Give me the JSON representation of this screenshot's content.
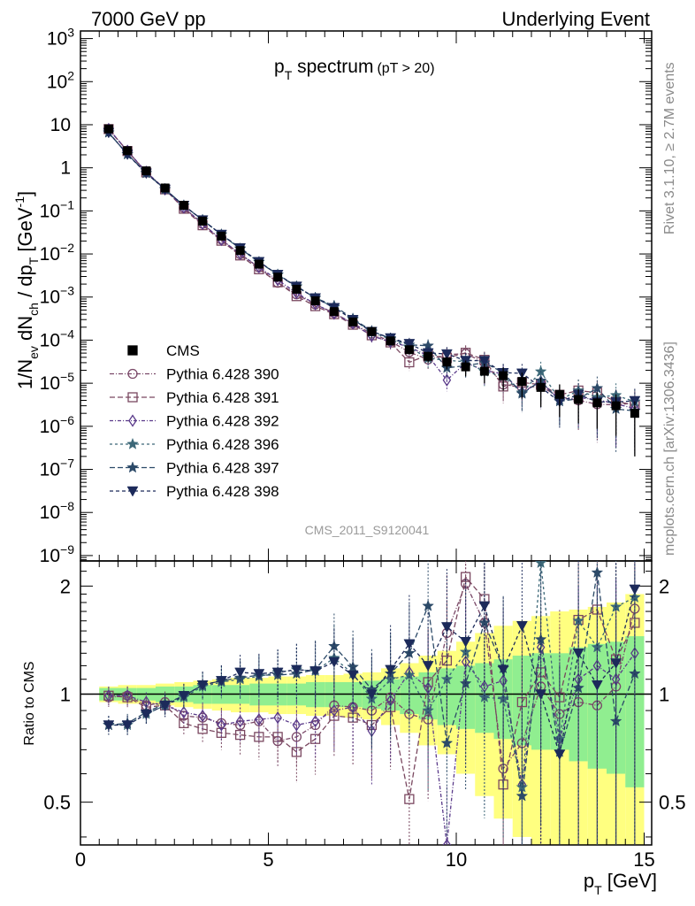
{
  "header": {
    "left": "7000 GeV pp",
    "right": "Underlying Event"
  },
  "side": {
    "top": "Rivet 3.1.10, ≥ 2.7M events",
    "bottom": "mcplots.cern.ch [arXiv:1306.3436]"
  },
  "chart_data": {
    "type": "scatter",
    "title": "p_T spectrum (pT > 20)",
    "title_main": "p",
    "title_sub": "T",
    "title_rest": " spectrum",
    "title_cut": "(pT > 20)",
    "analysis": "CMS_2011_S9120041",
    "xlabel": "p_T [GeV]",
    "xlabel_main": "p",
    "xlabel_sub": "T",
    "xlabel_rest": " [GeV]",
    "ylabel": "1/N_ev dN_ch / dp_T [GeV^-1]",
    "ratio_ylabel": "Ratio to CMS",
    "xlim": [
      0,
      15.2
    ],
    "ylim": [
      7.5e-10,
      1500.0
    ],
    "yscale": "log",
    "ratio_ylim": [
      0.38,
      2.35
    ],
    "ratio_yscale": "log",
    "x_ticks": [
      "0",
      "5",
      "10",
      "15"
    ],
    "ratio_ticks": [
      "0.5",
      "1",
      "2"
    ],
    "y_ticks": [
      {
        "base": "10",
        "exp": "3"
      },
      {
        "base": "10",
        "exp": "2"
      },
      {
        "base": "10",
        "exp": ""
      },
      {
        "base": "1",
        "exp": ""
      },
      {
        "base": "10",
        "exp": "−1"
      },
      {
        "base": "10",
        "exp": "−2"
      },
      {
        "base": "10",
        "exp": "−3"
      },
      {
        "base": "10",
        "exp": "−4"
      },
      {
        "base": "10",
        "exp": "−5"
      },
      {
        "base": "10",
        "exp": "−6"
      },
      {
        "base": "10",
        "exp": "−7"
      },
      {
        "base": "10",
        "exp": "−8"
      },
      {
        "base": "10",
        "exp": "−9"
      }
    ],
    "x": [
      0.75,
      1.25,
      1.75,
      2.25,
      2.75,
      3.25,
      3.75,
      4.25,
      4.75,
      5.25,
      5.75,
      6.25,
      6.75,
      7.25,
      7.75,
      8.25,
      8.75,
      9.25,
      9.75,
      10.25,
      10.75,
      11.25,
      11.75,
      12.25,
      12.75,
      13.25,
      13.75,
      14.25,
      14.75
    ],
    "data": {
      "name": "CMS",
      "values": [
        8.0,
        2.5,
        0.85,
        0.34,
        0.135,
        0.058,
        0.026,
        0.012,
        0.0058,
        0.0029,
        0.00152,
        0.00082,
        0.00046,
        0.000265,
        0.000158,
        9.6e-05,
        6e-05,
        4.2e-05,
        3.1e-05,
        2.4e-05,
        1.9e-05,
        1.5e-05,
        1.1e-05,
        8e-06,
        5.5e-06,
        4.2e-06,
        3.5e-06,
        3e-06,
        2e-06
      ],
      "band_inner": [
        0.04,
        0.04,
        0.04,
        0.05,
        0.05,
        0.06,
        0.06,
        0.06,
        0.07,
        0.07,
        0.07,
        0.08,
        0.08,
        0.08,
        0.09,
        0.1,
        0.12,
        0.15,
        0.18,
        0.2,
        0.22,
        0.25,
        0.28,
        0.3,
        0.3,
        0.35,
        0.38,
        0.4,
        0.45
      ],
      "band_outer": [
        0.05,
        0.06,
        0.06,
        0.07,
        0.08,
        0.09,
        0.1,
        0.11,
        0.11,
        0.12,
        0.12,
        0.13,
        0.13,
        0.14,
        0.15,
        0.18,
        0.22,
        0.28,
        0.32,
        0.4,
        0.48,
        0.55,
        0.6,
        0.65,
        0.7,
        0.72,
        0.75,
        0.8,
        0.9
      ]
    },
    "series": [
      {
        "name": "Pythia 6.428 390",
        "color": "#7a4868",
        "marker": "circle",
        "dash": "5,2,1,2",
        "ratio": [
          0.98,
          0.99,
          0.93,
          0.95,
          0.87,
          0.86,
          0.83,
          0.82,
          0.84,
          0.74,
          0.76,
          0.82,
          0.93,
          0.92,
          0.9,
          0.98,
          0.88,
          0.85,
          1.48,
          2.03,
          1.58,
          0.62,
          0.73,
          1.05,
          0.88,
          0.95,
          0.93,
          1.05,
          1.73
        ]
      },
      {
        "name": "Pythia 6.428 391",
        "color": "#7a4860",
        "marker": "square",
        "dash": "6,3",
        "ratio": [
          0.99,
          0.98,
          0.92,
          0.93,
          0.83,
          0.8,
          0.78,
          0.77,
          0.76,
          0.76,
          0.69,
          0.75,
          0.87,
          0.86,
          0.82,
          0.92,
          0.51,
          1.08,
          1.24,
          2.12,
          1.84,
          0.56,
          0.95,
          1.15,
          0.98,
          1.61,
          1.72,
          1.25,
          1.58
        ]
      },
      {
        "name": "Pythia 6.428 392",
        "color": "#5a3a8a",
        "marker": "diamond",
        "dash": "4,2,1,2",
        "ratio": [
          0.99,
          0.99,
          0.95,
          0.93,
          0.89,
          0.87,
          0.82,
          0.84,
          0.85,
          0.86,
          0.82,
          0.84,
          0.9,
          0.92,
          0.79,
          0.96,
          1.15,
          1.04,
          0.38,
          1.23,
          1.05,
          1.09,
          0.56,
          1.35,
          0.75,
          1.1,
          1.2,
          1.1,
          1.3
        ]
      },
      {
        "name": "Pythia 6.428 396",
        "color": "#3c6878",
        "marker": "star",
        "dash": "3,3",
        "ratio": [
          0.82,
          0.82,
          0.88,
          0.93,
          0.98,
          1.05,
          1.08,
          1.1,
          1.12,
          1.15,
          1.17,
          1.16,
          1.26,
          1.14,
          0.97,
          1.1,
          1.13,
          0.9,
          1.1,
          1.31,
          0.98,
          0.97,
          0.55,
          2.32,
          0.75,
          1.6,
          1.35,
          1.75,
          1.86
        ]
      },
      {
        "name": "Pythia 6.428 397",
        "color": "#2c4a68",
        "marker": "star",
        "dash": "6,3",
        "ratio": [
          0.82,
          0.83,
          0.89,
          0.94,
          0.99,
          1.06,
          1.09,
          1.11,
          1.13,
          1.13,
          1.14,
          1.17,
          1.36,
          1.19,
          1.03,
          1.14,
          1.3,
          1.76,
          0.73,
          1.07,
          1.58,
          1.18,
          0.52,
          1.42,
          0.69,
          1.04,
          2.18,
          0.84,
          1.14
        ]
      },
      {
        "name": "Pythia 6.428 398",
        "color": "#1c2a5a",
        "marker": "tridown",
        "dash": "4,3",
        "ratio": [
          0.82,
          0.82,
          0.88,
          0.93,
          0.99,
          1.06,
          1.09,
          1.15,
          1.14,
          1.15,
          1.17,
          1.16,
          1.23,
          1.13,
          1.0,
          1.17,
          1.38,
          1.2,
          1.54,
          1.4,
          1.76,
          1.17,
          1.55,
          1.0,
          0.68,
          1.3,
          1.06,
          1.22,
          1.96
        ]
      }
    ]
  }
}
